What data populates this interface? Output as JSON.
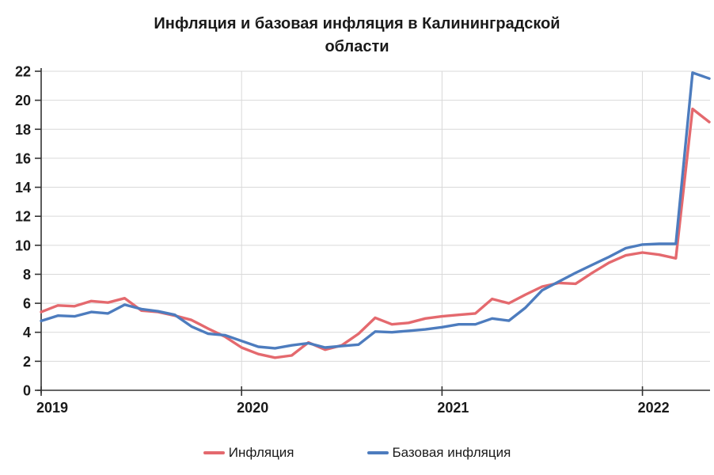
{
  "title": {
    "line1": "Инфляция и базовая инфляция в Калининградской",
    "line2": "области"
  },
  "chart_data": {
    "type": "line",
    "title": "Инфляция и базовая инфляция в Калининградской области",
    "x": [
      "2018-12",
      "2019-01",
      "2019-02",
      "2019-03",
      "2019-04",
      "2019-05",
      "2019-06",
      "2019-07",
      "2019-08",
      "2019-09",
      "2019-10",
      "2019-11",
      "2019-12",
      "2020-01",
      "2020-02",
      "2020-03",
      "2020-04",
      "2020-05",
      "2020-06",
      "2020-07",
      "2020-08",
      "2020-09",
      "2020-10",
      "2020-11",
      "2020-12",
      "2021-01",
      "2021-02",
      "2021-03",
      "2021-04",
      "2021-05",
      "2021-06",
      "2021-07",
      "2021-08",
      "2021-09",
      "2021-10",
      "2021-11",
      "2021-12",
      "2022-01",
      "2022-02",
      "2022-03",
      "2022-04"
    ],
    "x_tick_labels": [
      "2019",
      "2020",
      "2021",
      "2022"
    ],
    "x_tick_indices": [
      0,
      12,
      24,
      36
    ],
    "series": [
      {
        "name": "Инфляция",
        "color": "#e4696e",
        "values": [
          5.4,
          5.85,
          5.8,
          6.15,
          6.05,
          6.35,
          5.5,
          5.4,
          5.15,
          4.85,
          4.25,
          3.7,
          2.95,
          2.5,
          2.25,
          2.4,
          3.3,
          2.8,
          3.1,
          3.9,
          5.0,
          4.55,
          4.65,
          4.95,
          5.1,
          5.2,
          5.3,
          6.3,
          6.0,
          6.6,
          7.15,
          7.4,
          7.35,
          8.1,
          8.8,
          9.3,
          9.5,
          9.35,
          9.1,
          19.4,
          18.5
        ]
      },
      {
        "name": "Базовая инфляция",
        "color": "#4d7cbe",
        "values": [
          4.78,
          5.15,
          5.1,
          5.4,
          5.3,
          5.9,
          5.6,
          5.45,
          5.2,
          4.4,
          3.9,
          3.8,
          3.4,
          3.0,
          2.9,
          3.1,
          3.25,
          2.95,
          3.05,
          3.15,
          4.05,
          4.0,
          4.1,
          4.2,
          4.35,
          4.55,
          4.55,
          4.95,
          4.8,
          5.7,
          6.9,
          7.5,
          8.1,
          8.65,
          9.2,
          9.8,
          10.05,
          10.1,
          10.1,
          21.9,
          21.5
        ]
      }
    ],
    "ylim": [
      0,
      22
    ],
    "ytick_step": 2,
    "grid": true,
    "grid_color": "#d9d9d9",
    "axis_color": "#333333",
    "legend_position": "bottom"
  }
}
